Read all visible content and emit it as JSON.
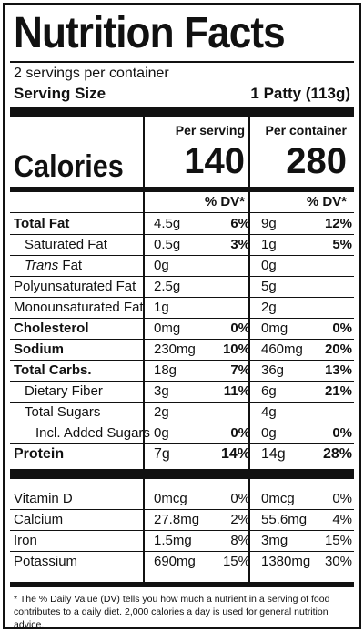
{
  "title": "Nutrition Facts",
  "servings_per_container": "2 servings per container",
  "serving_size_label": "Serving Size",
  "serving_size_value": "1 Patty (113g)",
  "col_per_serving": "Per serving",
  "col_per_container": "Per container",
  "calories_label": "Calories",
  "calories_serving": "140",
  "calories_container": "280",
  "dv_header": "% DV*",
  "nutrients": [
    {
      "name": "Total Fat",
      "s_amt": "4.5g",
      "s_dv": "6%",
      "c_amt": "9g",
      "c_dv": "12%"
    },
    {
      "name": "Saturated Fat",
      "s_amt": "0.5g",
      "s_dv": "3%",
      "c_amt": "1g",
      "c_dv": "5%"
    },
    {
      "name_i": "Trans",
      "name_r": " Fat",
      "s_amt": "0g",
      "c_amt": "0g"
    },
    {
      "name": "Polyunsaturated Fat",
      "s_amt": "2.5g",
      "c_amt": "5g"
    },
    {
      "name": "Monounsaturated Fat",
      "s_amt": "1g",
      "c_amt": "2g"
    },
    {
      "name": "Cholesterol",
      "s_amt": "0mg",
      "s_dv": "0%",
      "c_amt": "0mg",
      "c_dv": "0%"
    },
    {
      "name": "Sodium",
      "s_amt": "230mg",
      "s_dv": "10%",
      "c_amt": "460mg",
      "c_dv": "20%"
    },
    {
      "name": "Total Carbs.",
      "s_amt": "18g",
      "s_dv": "7%",
      "c_amt": "36g",
      "c_dv": "13%"
    },
    {
      "name": "Dietary Fiber",
      "s_amt": "3g",
      "s_dv": "11%",
      "c_amt": "6g",
      "c_dv": "21%"
    },
    {
      "name": "Total Sugars",
      "s_amt": "2g",
      "c_amt": "4g"
    },
    {
      "name": "Incl. Added Sugars",
      "s_amt": "0g",
      "s_dv": "0%",
      "c_amt": "0g",
      "c_dv": "0%"
    },
    {
      "name": "Protein",
      "s_amt": "7g",
      "s_dv": "14%",
      "c_amt": "14g",
      "c_dv": "28%"
    }
  ],
  "vitamins": [
    {
      "name": "Vitamin D",
      "s_amt": "0mcg",
      "s_dv": "0%",
      "c_amt": "0mcg",
      "c_dv": "0%"
    },
    {
      "name": "Calcium",
      "s_amt": "27.8mg",
      "s_dv": "2%",
      "c_amt": "55.6mg",
      "c_dv": "4%"
    },
    {
      "name": "Iron",
      "s_amt": "1.5mg",
      "s_dv": "8%",
      "c_amt": "3mg",
      "c_dv": "15%"
    },
    {
      "name": "Potassium",
      "s_amt": "690mg",
      "s_dv": "15%",
      "c_amt": "1380mg",
      "c_dv": "30%"
    }
  ],
  "footnote": "* The % Daily Value (DV) tells you how much a nutrient in a serving of food contributes to a daily diet. 2,000 calories a day is used for general nutrition advice."
}
